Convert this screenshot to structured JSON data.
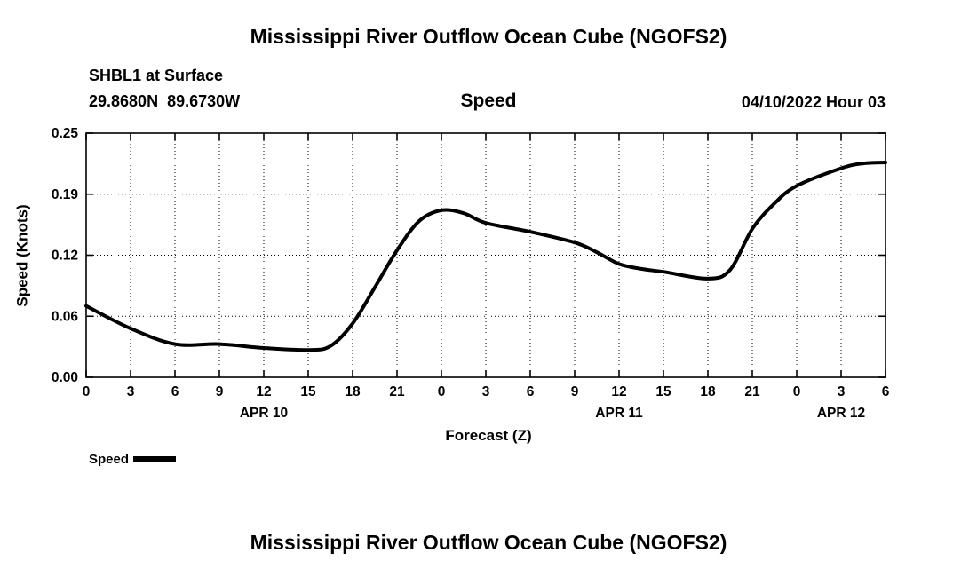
{
  "header": {
    "title": "Mississippi River Outflow Ocean Cube (NGOFS2)",
    "station": "SHBL1 at Surface",
    "coords": "29.8680N  89.6730W",
    "panel_title": "Speed",
    "timestamp": "04/10/2022 Hour 03"
  },
  "footer": {
    "title": "Mississippi River Outflow Ocean Cube (NGOFS2)"
  },
  "chart_data": {
    "type": "line",
    "title": "Speed",
    "xlabel": "Forecast (Z)",
    "ylabel": "Speed (Knots)",
    "ylim": [
      0,
      0.25
    ],
    "yticks": [
      {
        "value": 0,
        "label": "0.00"
      },
      {
        "value": 0.0625,
        "label": "0.06"
      },
      {
        "value": 0.125,
        "label": "0.12"
      },
      {
        "value": 0.1875,
        "label": "0.19"
      },
      {
        "value": 0.25,
        "label": "0.25"
      }
    ],
    "xlim_hours": [
      0,
      54
    ],
    "xticks": [
      {
        "hour": 0,
        "label": "0"
      },
      {
        "hour": 3,
        "label": "3"
      },
      {
        "hour": 6,
        "label": "6"
      },
      {
        "hour": 9,
        "label": "9"
      },
      {
        "hour": 12,
        "label": "12"
      },
      {
        "hour": 15,
        "label": "15"
      },
      {
        "hour": 18,
        "label": "18"
      },
      {
        "hour": 21,
        "label": "21"
      },
      {
        "hour": 24,
        "label": "0"
      },
      {
        "hour": 27,
        "label": "3"
      },
      {
        "hour": 30,
        "label": "6"
      },
      {
        "hour": 33,
        "label": "9"
      },
      {
        "hour": 36,
        "label": "12"
      },
      {
        "hour": 39,
        "label": "15"
      },
      {
        "hour": 42,
        "label": "18"
      },
      {
        "hour": 45,
        "label": "21"
      },
      {
        "hour": 48,
        "label": "0"
      },
      {
        "hour": 51,
        "label": "3"
      },
      {
        "hour": 54,
        "label": "6"
      }
    ],
    "date_labels": [
      {
        "hour": 12,
        "label": "APR 10"
      },
      {
        "hour": 36,
        "label": "APR 11"
      },
      {
        "hour": 51,
        "label": "APR 12"
      }
    ],
    "grid": true,
    "legend_position": "bottom-left",
    "legend": {
      "label": "Speed",
      "color": "#000000"
    },
    "line_color": "#000000",
    "series": [
      {
        "name": "Speed",
        "x_hours": [
          0,
          3,
          6,
          9,
          12,
          15,
          16.5,
          18,
          19.5,
          21,
          22.5,
          24,
          25.5,
          27,
          30,
          33,
          34.5,
          36,
          37.5,
          39,
          42,
          43.5,
          45,
          46.5,
          48,
          51,
          52.5,
          54
        ],
        "values": [
          0.073,
          0.05,
          0.034,
          0.034,
          0.03,
          0.028,
          0.032,
          0.055,
          0.092,
          0.13,
          0.16,
          0.171,
          0.168,
          0.158,
          0.149,
          0.138,
          0.128,
          0.116,
          0.111,
          0.108,
          0.101,
          0.11,
          0.152,
          0.178,
          0.196,
          0.214,
          0.219,
          0.22
        ]
      }
    ]
  }
}
